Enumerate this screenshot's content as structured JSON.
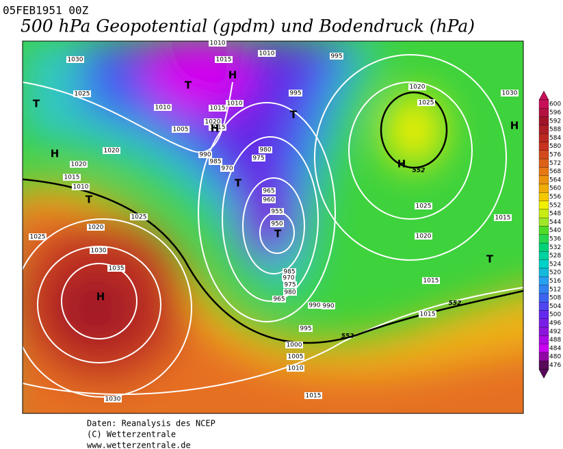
{
  "header": {
    "date": "05FEB1951 00Z",
    "title": "500 hPa Geopotential (gpdm) und Bodendruck (hPa)"
  },
  "isobar_labels": [
    "1030",
    "1025",
    "1020",
    "1020",
    "1015",
    "1010",
    "1020",
    "1025",
    "1025",
    "1030",
    "1035",
    "1030",
    "1010",
    "1005",
    "1020",
    "1015",
    "990",
    "985",
    "970",
    "975",
    "980",
    "965",
    "960",
    "955",
    "950",
    "985",
    "970",
    "975",
    "980",
    "965",
    "990",
    "990",
    "995",
    "1000",
    "1005",
    "1010",
    "1015",
    "1015",
    "1015",
    "1020",
    "1025",
    "1015",
    "1020",
    "1025",
    "1030",
    "995",
    "995",
    "1010",
    "1015",
    "1010",
    "1015",
    "1010"
  ],
  "contour_labels": [
    "552",
    "552",
    "552"
  ],
  "centers": [
    "T",
    "H",
    "T",
    "H",
    "T",
    "H",
    "H",
    "T",
    "T",
    "T",
    "H",
    "H",
    "T"
  ],
  "legend": {
    "levels": [
      600,
      596,
      592,
      588,
      584,
      580,
      576,
      572,
      568,
      564,
      560,
      556,
      552,
      548,
      544,
      540,
      536,
      532,
      528,
      524,
      520,
      516,
      512,
      508,
      504,
      500,
      496,
      492,
      488,
      484,
      480,
      476
    ]
  },
  "footer": [
    "Daten: Reanalysis des NCEP",
    "(C) Wetterzentrale",
    "www.wetterzentrale.de"
  ]
}
